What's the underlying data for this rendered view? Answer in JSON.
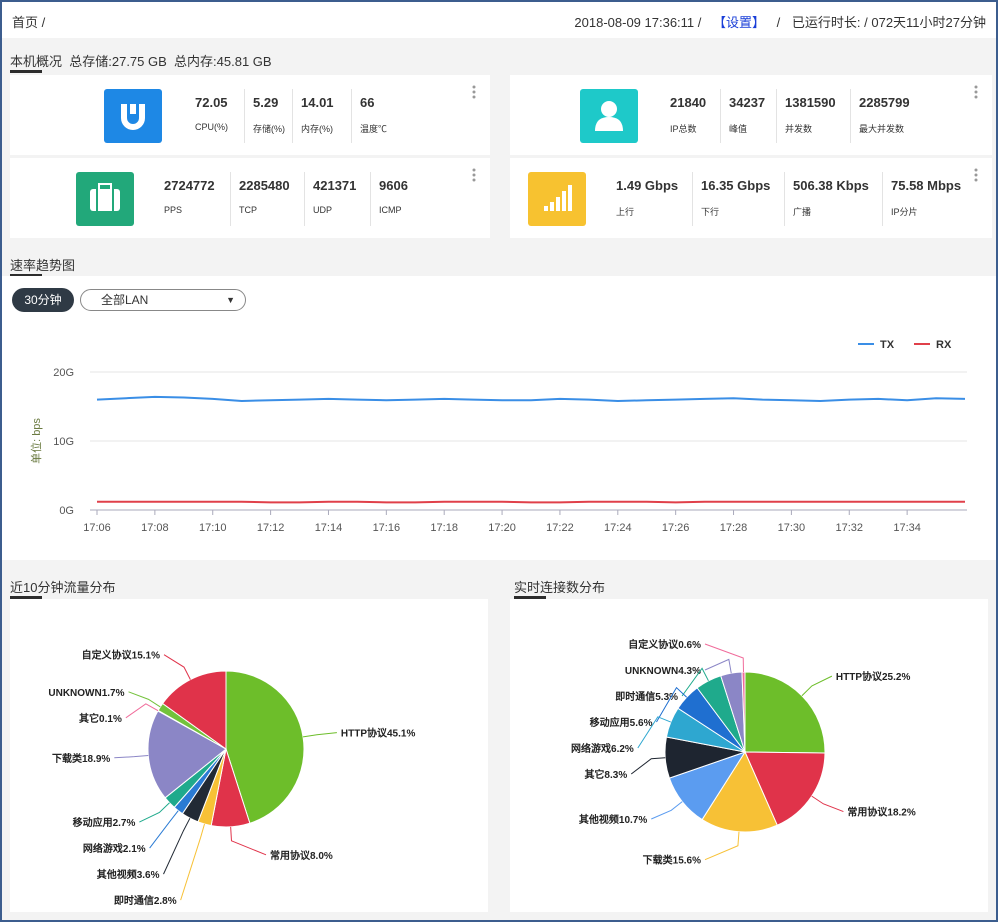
{
  "header": {
    "breadcrumb": "首页 /",
    "datetime": "2018-08-09 17:36:11 /",
    "settings": "【设置】",
    "separator": "/",
    "uptime": "已运行时长: / 072天11小时27分钟"
  },
  "overview": {
    "title": "本机概况",
    "storage": "总存储:27.75 GB",
    "memory": "总内存:45.81 GB",
    "cards": [
      {
        "stats": [
          {
            "value": "72.05",
            "label": "CPU(%)"
          },
          {
            "value": "5.29",
            "label": "存储(%)"
          },
          {
            "value": "14.01",
            "label": "内存(%)"
          },
          {
            "value": "66",
            "label": "温度℃"
          }
        ]
      },
      {
        "stats": [
          {
            "value": "21840",
            "label": "IP总数"
          },
          {
            "value": "34237",
            "label": "峰值"
          },
          {
            "value": "1381590",
            "label": "并发数"
          },
          {
            "value": "2285799",
            "label": "最大并发数"
          }
        ]
      },
      {
        "stats": [
          {
            "value": "2724772",
            "label": "PPS"
          },
          {
            "value": "2285480",
            "label": "TCP"
          },
          {
            "value": "421371",
            "label": "UDP"
          },
          {
            "value": "9606",
            "label": "ICMP"
          }
        ]
      },
      {
        "stats": [
          {
            "value": "1.49 Gbps",
            "label": "上行"
          },
          {
            "value": "16.35 Gbps",
            "label": "下行"
          },
          {
            "value": "506.38 Kbps",
            "label": "广播"
          },
          {
            "value": "75.58 Mbps",
            "label": "IP分片"
          }
        ]
      }
    ]
  },
  "trend": {
    "range_button": "30分钟",
    "lan_select": "全部LAN"
  },
  "chart_data": [
    {
      "type": "line",
      "title": "速率趋势图",
      "ylabel": "单位: bps",
      "x": [
        "17:06",
        "17:07",
        "17:08",
        "17:09",
        "17:10",
        "17:11",
        "17:12",
        "17:13",
        "17:14",
        "17:15",
        "17:16",
        "17:17",
        "17:18",
        "17:19",
        "17:20",
        "17:21",
        "17:22",
        "17:23",
        "17:24",
        "17:25",
        "17:26",
        "17:27",
        "17:28",
        "17:29",
        "17:30",
        "17:31",
        "17:32",
        "17:33",
        "17:34",
        "17:35",
        "17:36"
      ],
      "xticks": [
        "17:06",
        "17:08",
        "17:10",
        "17:12",
        "17:14",
        "17:16",
        "17:18",
        "17:20",
        "17:22",
        "17:24",
        "17:26",
        "17:28",
        "17:30",
        "17:32",
        "17:34"
      ],
      "ylim": [
        0,
        20
      ],
      "yticks": [
        {
          "value": 0,
          "label": "0G"
        },
        {
          "value": 10,
          "label": "10G"
        },
        {
          "value": 20,
          "label": "20G"
        }
      ],
      "grid": true,
      "legend": "top-right",
      "series": [
        {
          "name": "TX",
          "color": "#3a8ee6",
          "values": [
            16.0,
            16.2,
            16.4,
            16.3,
            16.1,
            15.8,
            15.9,
            16.0,
            16.1,
            16.0,
            15.9,
            16.0,
            16.1,
            16.0,
            15.9,
            15.9,
            16.1,
            16.0,
            15.8,
            15.9,
            16.0,
            16.1,
            16.2,
            16.0,
            15.9,
            15.8,
            16.0,
            16.1,
            15.9,
            16.2,
            16.1
          ]
        },
        {
          "name": "RX",
          "color": "#e0404a",
          "values": [
            1.2,
            1.2,
            1.2,
            1.2,
            1.2,
            1.2,
            1.1,
            1.1,
            1.2,
            1.2,
            1.1,
            1.1,
            1.2,
            1.2,
            1.2,
            1.1,
            1.1,
            1.2,
            1.2,
            1.2,
            1.1,
            1.2,
            1.2,
            1.2,
            1.2,
            1.2,
            1.2,
            1.2,
            1.2,
            1.2,
            1.2
          ]
        }
      ]
    },
    {
      "type": "pie",
      "title": "近10分钟流量分布",
      "values": [
        45.1,
        8.0,
        2.8,
        3.6,
        2.1,
        2.7,
        18.9,
        0.1,
        1.7,
        15.1
      ],
      "value_labels": [
        "HTTP协议45.1%",
        "常用协议8.0%",
        "即时通信2.8%",
        "其他视频3.6%",
        "网络游戏2.1%",
        "移动应用2.7%",
        "下载类18.9%",
        "其它0.1%",
        "UNKNOWN1.7%",
        "自定义协议15.1%"
      ],
      "colors": [
        "#6dbe2a",
        "#e0334a",
        "#f7c136",
        "#222a35",
        "#2a7bd4",
        "#1faa8c",
        "#8b86c6",
        "#f06b9a",
        "#73c23b",
        "#e0334a"
      ]
    },
    {
      "type": "pie",
      "title": "实时连接数分布",
      "values": [
        25.2,
        18.2,
        15.6,
        10.7,
        8.3,
        6.2,
        5.6,
        5.3,
        4.3,
        0.6
      ],
      "value_labels": [
        "HTTP协议25.2%",
        "常用协议18.2%",
        "下载类15.6%",
        "其他视频10.7%",
        "其它8.3%",
        "网络游戏6.2%",
        "移动应用5.6%",
        "即时通信5.3%",
        "UNKNOWN4.3%",
        "自定义协议0.6%"
      ],
      "colors": [
        "#6dbe2a",
        "#e0334a",
        "#f7c136",
        "#5b9cf0",
        "#1e2530",
        "#2ea7d0",
        "#1f6fd0",
        "#1faa8c",
        "#8b86c6",
        "#f06b9a"
      ]
    }
  ]
}
